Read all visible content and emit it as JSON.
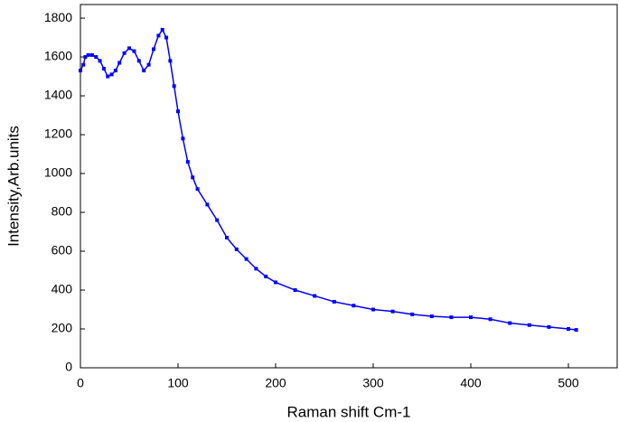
{
  "chart_data": {
    "type": "line",
    "xlabel": "Raman shift Cm-1",
    "ylabel": "Intensity,Arb.units",
    "color": "#0000ff",
    "x": [
      0,
      3,
      5,
      8,
      12,
      16,
      20,
      24,
      28,
      32,
      36,
      40,
      45,
      50,
      55,
      60,
      65,
      70,
      75,
      80,
      84,
      88,
      92,
      96,
      100,
      105,
      110,
      115,
      120,
      130,
      140,
      150,
      160,
      170,
      180,
      190,
      200,
      220,
      240,
      260,
      280,
      300,
      320,
      340,
      360,
      380,
      400,
      420,
      440,
      460,
      480,
      500,
      508
    ],
    "values": [
      1530,
      1560,
      1600,
      1610,
      1610,
      1600,
      1580,
      1540,
      1500,
      1510,
      1530,
      1570,
      1620,
      1645,
      1630,
      1580,
      1530,
      1560,
      1640,
      1710,
      1740,
      1700,
      1580,
      1450,
      1320,
      1180,
      1060,
      980,
      920,
      840,
      760,
      670,
      610,
      560,
      510,
      470,
      440,
      400,
      370,
      340,
      320,
      300,
      290,
      275,
      265,
      260,
      260,
      250,
      230,
      220,
      210,
      200,
      195
    ],
    "xlim": [
      0,
      550
    ],
    "ylim": [
      0,
      1870
    ],
    "xticks": [
      0,
      100,
      200,
      300,
      400,
      500
    ],
    "yticks": [
      0,
      200,
      400,
      600,
      800,
      1000,
      1200,
      1400,
      1600,
      1800
    ]
  }
}
